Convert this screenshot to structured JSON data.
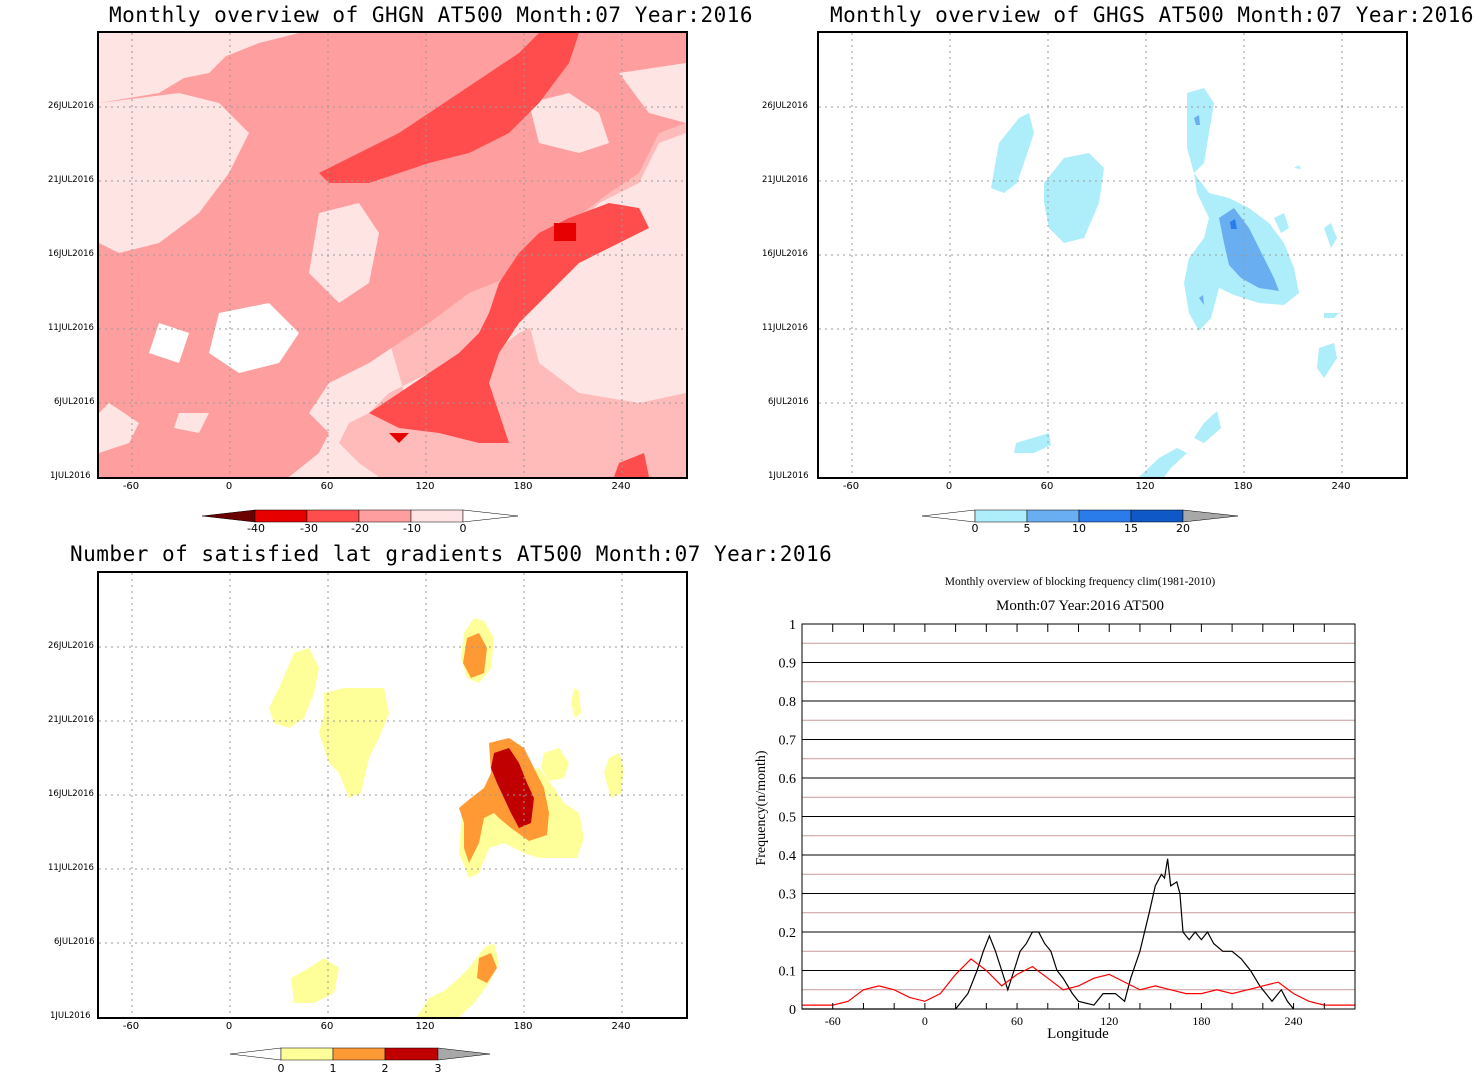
{
  "panels": {
    "ghgn": {
      "title": "Monthly overview of GHGN AT500 Month:07 Year:2016",
      "y_ticks": [
        "26JUL2016",
        "21JUL2016",
        "16JUL2016",
        "11JUL2016",
        "6JUL2016",
        "1JUL2016"
      ],
      "x_ticks": [
        "-60",
        "0",
        "60",
        "120",
        "180",
        "240"
      ],
      "colorbar_labels": [
        "-40",
        "-30",
        "-20",
        "-10",
        "0"
      ],
      "colors": [
        "#6b0000",
        "#e60000",
        "#ff4d4d",
        "#ff9e9e",
        "#ffe4e4",
        "#ffffff"
      ]
    },
    "ghgs": {
      "title": "Monthly overview of GHGS AT500 Month:07 Year:2016",
      "y_ticks": [
        "26JUL2016",
        "21JUL2016",
        "16JUL2016",
        "11JUL2016",
        "6JUL2016",
        "1JUL2016"
      ],
      "x_ticks": [
        "-60",
        "0",
        "60",
        "120",
        "180",
        "240"
      ],
      "colorbar_labels": [
        "0",
        "5",
        "10",
        "15",
        "20"
      ],
      "colors": [
        "#ffffff",
        "#aeeefa",
        "#6aaef2",
        "#2a7cea",
        "#0e58c8",
        "#a8a8a8"
      ]
    },
    "gradients": {
      "title": "Number of satisfied lat gradients AT500 Month:07 Year:2016",
      "y_ticks": [
        "26JUL2016",
        "21JUL2016",
        "16JUL2016",
        "11JUL2016",
        "6JUL2016",
        "1JUL2016"
      ],
      "x_ticks": [
        "-60",
        "0",
        "60",
        "120",
        "180",
        "240"
      ],
      "colorbar_labels": [
        "0",
        "1",
        "2",
        "3"
      ],
      "colors": [
        "#ffffff",
        "#ffff99",
        "#ff9933",
        "#c00000",
        "#a8a8a8"
      ]
    },
    "freq": {
      "title": "Monthly overview of blocking frequency clim(1981-2010)",
      "subtitle": "Month:07 Year:2016  AT500",
      "ylabel": "Frequency(n/month)",
      "xlabel": "Longitude",
      "y_ticks": [
        "0",
        "0.1",
        "0.2",
        "0.3",
        "0.4",
        "0.5",
        "0.6",
        "0.7",
        "0.8",
        "0.9",
        "1"
      ],
      "x_ticks": [
        "-60",
        "0",
        "60",
        "120",
        "180",
        "240"
      ]
    }
  },
  "chart_data": [
    {
      "type": "heatmap",
      "title": "Monthly overview of GHGN AT500 Month:07 Year:2016",
      "x": "longitude",
      "xlim": [
        -80,
        280
      ],
      "y": "date",
      "ylim": [
        "1JUL2016",
        "31JUL2016"
      ],
      "levels": [
        -40,
        -30,
        -20,
        -10,
        0
      ],
      "note_values": "filled contours, mostly -20 to 0 with a -40 to -30 core near 205E on 18JUL2016"
    },
    {
      "type": "heatmap",
      "title": "Monthly overview of GHGS AT500 Month:07 Year:2016",
      "x": "longitude",
      "xlim": [
        -80,
        280
      ],
      "y": "date",
      "ylim": [
        "1JUL2016",
        "31JUL2016"
      ],
      "levels": [
        0,
        5,
        10,
        15,
        20
      ]
    },
    {
      "type": "heatmap",
      "title": "Number of satisfied lat gradients AT500 Month:07 Year:2016",
      "x": "longitude",
      "xlim": [
        -80,
        280
      ],
      "y": "date",
      "ylim": [
        "1JUL2016",
        "31JUL2016"
      ],
      "levels": [
        0,
        1,
        2,
        3
      ]
    },
    {
      "type": "line",
      "title": "Monthly overview of blocking frequency clim(1981-2010)",
      "subtitle": "Month:07 Year:2016  AT500",
      "xlabel": "Longitude",
      "ylabel": "Frequency(n/month)",
      "xlim": [
        -80,
        280
      ],
      "ylim": [
        0,
        1
      ],
      "series": [
        {
          "color": "#000000",
          "x": [
            -80,
            20,
            28,
            34,
            38,
            42,
            46,
            50,
            54,
            58,
            62,
            66,
            70,
            74,
            78,
            82,
            86,
            90,
            96,
            100,
            110,
            116,
            124,
            130,
            134,
            140,
            146,
            150,
            154,
            156,
            158,
            160,
            164,
            166,
            168,
            172,
            176,
            180,
            184,
            188,
            194,
            200,
            206,
            212,
            218,
            226,
            232,
            236,
            240
          ],
          "y": [
            0,
            0,
            0.04,
            0.1,
            0.15,
            0.19,
            0.15,
            0.1,
            0.05,
            0.1,
            0.15,
            0.17,
            0.2,
            0.2,
            0.17,
            0.15,
            0.1,
            0.08,
            0.04,
            0.02,
            0.01,
            0.04,
            0.04,
            0.02,
            0.08,
            0.15,
            0.25,
            0.32,
            0.35,
            0.34,
            0.39,
            0.32,
            0.33,
            0.3,
            0.2,
            0.18,
            0.2,
            0.18,
            0.2,
            0.17,
            0.15,
            0.15,
            0.13,
            0.1,
            0.06,
            0.02,
            0.05,
            0.02,
            0
          ]
        },
        {
          "color": "#ff0000",
          "x": [
            -80,
            -70,
            -60,
            -50,
            -40,
            -30,
            -20,
            -10,
            0,
            10,
            20,
            30,
            40,
            50,
            60,
            70,
            80,
            90,
            100,
            110,
            120,
            130,
            140,
            150,
            160,
            170,
            180,
            190,
            200,
            210,
            220,
            230,
            240,
            250,
            260,
            270,
            280
          ],
          "y": [
            0.01,
            0.01,
            0.01,
            0.02,
            0.05,
            0.06,
            0.05,
            0.03,
            0.02,
            0.04,
            0.09,
            0.13,
            0.1,
            0.06,
            0.09,
            0.11,
            0.08,
            0.05,
            0.06,
            0.08,
            0.09,
            0.07,
            0.05,
            0.06,
            0.05,
            0.04,
            0.04,
            0.05,
            0.04,
            0.05,
            0.06,
            0.07,
            0.04,
            0.02,
            0.01,
            0.01,
            0.01
          ]
        }
      ]
    }
  ]
}
